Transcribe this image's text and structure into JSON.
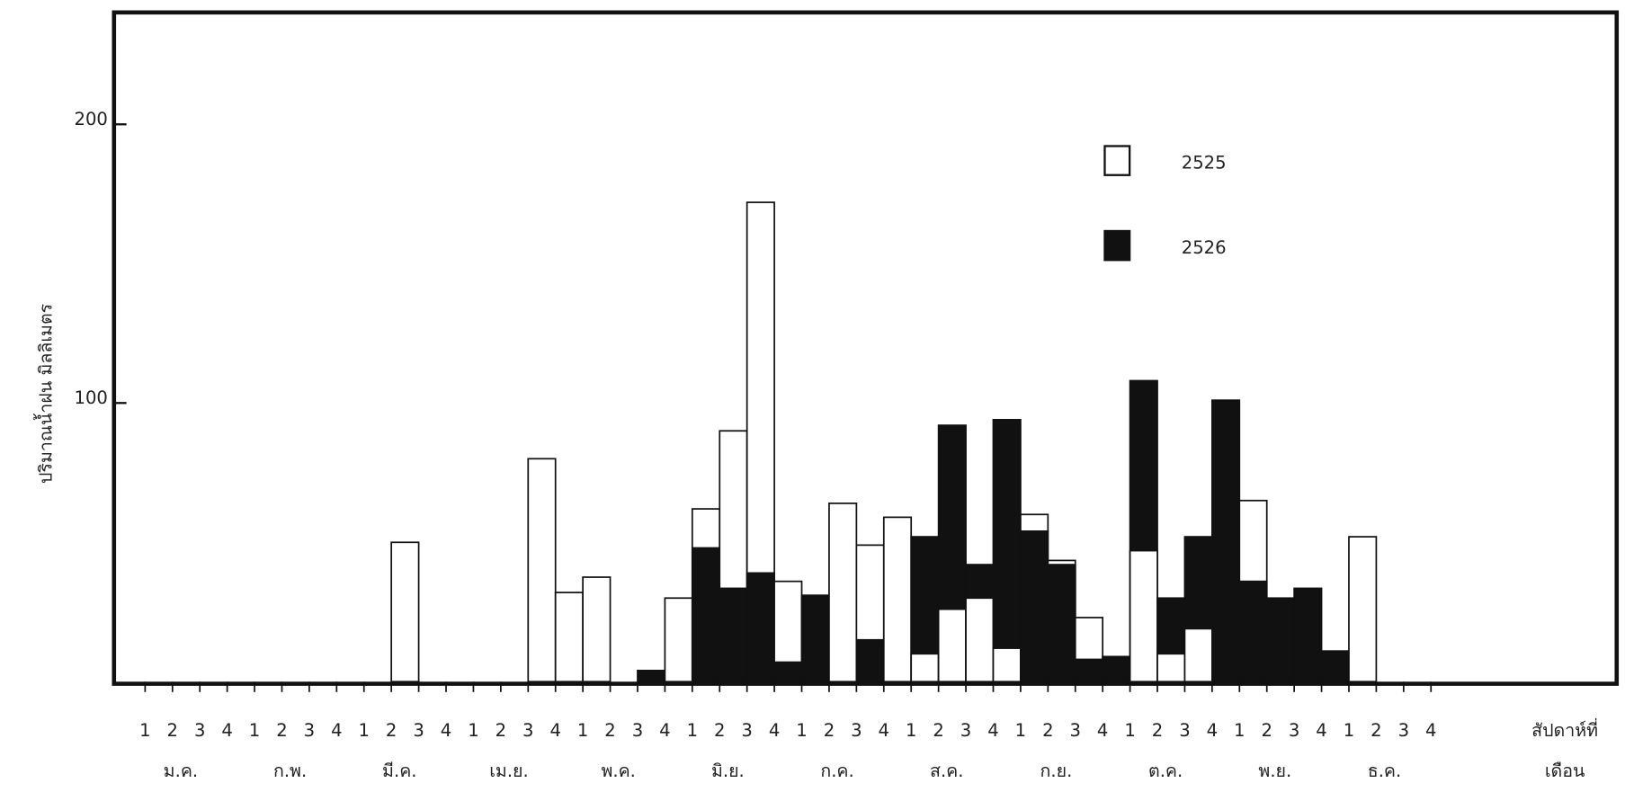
{
  "chart_data": {
    "type": "bar",
    "y_label": "ปริมาณน้ำฝน   มิลลิเมตร",
    "x_label": "สัปดาห์ที่",
    "group_label": "เดือน",
    "categories": [
      "1",
      "2",
      "3",
      "4",
      "1",
      "2",
      "3",
      "4",
      "1",
      "2",
      "3",
      "4",
      "1",
      "2",
      "3",
      "4",
      "1",
      "2",
      "3",
      "4",
      "1",
      "2",
      "3",
      "4",
      "1",
      "2",
      "3",
      "4",
      "1",
      "2",
      "3",
      "4",
      "1",
      "2",
      "3",
      "4",
      "1",
      "2",
      "3",
      "4",
      "1",
      "2",
      "3",
      "4",
      "1",
      "2",
      "3",
      "4"
    ],
    "groups": [
      "ม.ค.",
      "ก.พ.",
      "มี.ค.",
      "เม.ย.",
      "พ.ค.",
      "มิ.ย.",
      "ก.ค.",
      "ส.ค.",
      "ก.ย.",
      "ต.ค.",
      "พ.ย.",
      "ธ.ค."
    ],
    "series": [
      {
        "name": "2525",
        "color": "#ffffff",
        "values": [
          0,
          0,
          0,
          0,
          0,
          0,
          0,
          0,
          0,
          50,
          0,
          0,
          0,
          0,
          80,
          32,
          37.5,
          0,
          0,
          30,
          62,
          90,
          172,
          36,
          0,
          64,
          49,
          59,
          10,
          26,
          30,
          12,
          60,
          43.5,
          23,
          9,
          47,
          10,
          19,
          0,
          65,
          0,
          0,
          0,
          52,
          0,
          0,
          0
        ]
      },
      {
        "name": "2526",
        "color": "#111111",
        "values": [
          0,
          0,
          0,
          0,
          0,
          0,
          0,
          0,
          0,
          0,
          0,
          0,
          0,
          0,
          0,
          0,
          0,
          0,
          4,
          0,
          48,
          33.5,
          39,
          7,
          31,
          0,
          15,
          0,
          52,
          92,
          42,
          94,
          54,
          42,
          8,
          9,
          108,
          30,
          52,
          101,
          36,
          30,
          33.5,
          11,
          0,
          0,
          0,
          0
        ]
      }
    ],
    "ylim": [
      0,
      240
    ],
    "yticks": [
      100,
      200
    ],
    "legend": "upper-right"
  }
}
